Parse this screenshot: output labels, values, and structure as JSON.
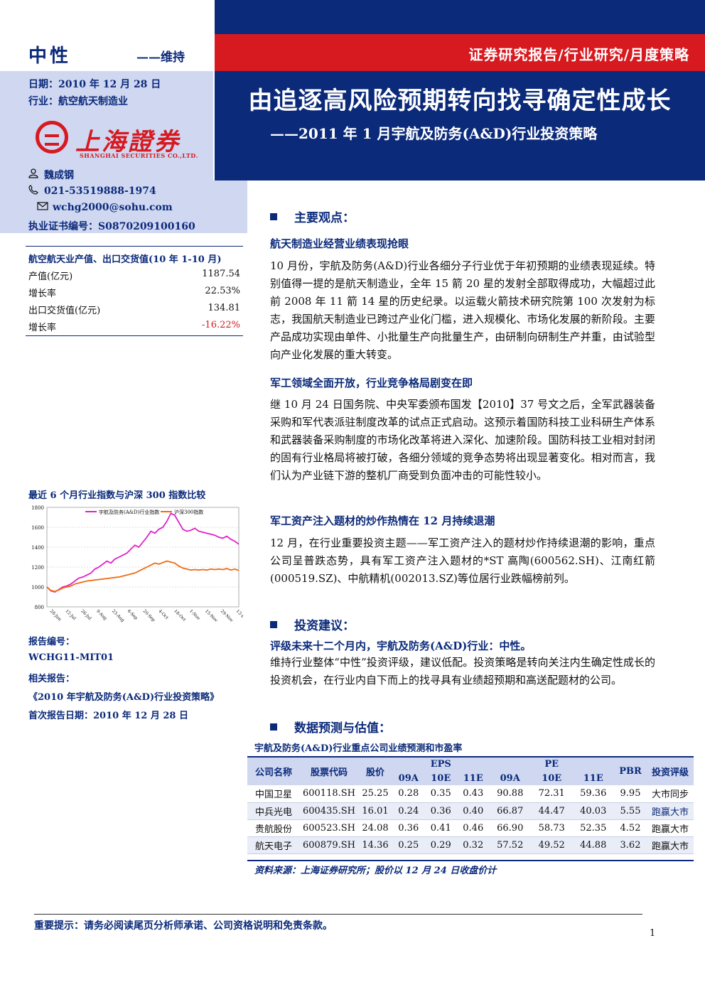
{
  "header": {
    "rating": "中性",
    "rating_action": "——维持",
    "date": "日期：2010 年 12 月 28 日",
    "industry": "行业：航空航天制造业",
    "report_type": "证券研究报告/行业研究/月度策略",
    "title": "由追逐高风险预期转向找寻确定性成长",
    "subtitle": "——2011 年 1 月宇航及防务(A&D)行业投资策略",
    "logo_cn": "上海證券",
    "logo_en": "SHANGHAI SECURITIES CO.,LTD."
  },
  "analyst": {
    "name": "魏成钢",
    "phone": "021-53519888-1974",
    "email": "wchg2000@sohu.com",
    "license": "执业证书编号：S0870209100160"
  },
  "left_table": {
    "title": "航空航天业产值、出口交货值(10 年 1-10 月)",
    "rows": [
      {
        "label": "产值(亿元)",
        "value": "1187.54"
      },
      {
        "label": "增长率",
        "value": "22.53%"
      },
      {
        "label": "出口交货值(亿元)",
        "value": "134.81"
      },
      {
        "label": "增长率",
        "value": "-16.22%"
      }
    ]
  },
  "chart_title": "最近 6 个月行业指数与沪深 300 指数比较",
  "chart_data": {
    "type": "line",
    "series": [
      {
        "name": "宇航及防务(A&D)行业指数",
        "color": "#e020c8",
        "values": [
          1000,
          960,
          950,
          975,
          1000,
          1010,
          1030,
          1060,
          1090,
          1100,
          1120,
          1140,
          1180,
          1200,
          1230,
          1260,
          1240,
          1280,
          1300,
          1320,
          1340,
          1380,
          1420,
          1400,
          1450,
          1500,
          1560,
          1540,
          1580,
          1600,
          1660,
          1740,
          1720,
          1650,
          1580,
          1560,
          1570,
          1590,
          1560,
          1550,
          1540,
          1530,
          1520,
          1500,
          1490,
          1510,
          1480,
          1460,
          1430
        ]
      },
      {
        "name": "沪深300指数",
        "color": "#f06a12",
        "values": [
          1000,
          965,
          955,
          970,
          990,
          1000,
          1010,
          1030,
          1040,
          1050,
          1060,
          1065,
          1070,
          1075,
          1080,
          1085,
          1090,
          1095,
          1100,
          1110,
          1120,
          1130,
          1140,
          1160,
          1180,
          1200,
          1220,
          1240,
          1230,
          1245,
          1260,
          1250,
          1240,
          1210,
          1190,
          1180,
          1170,
          1175,
          1170,
          1175,
          1170,
          1180,
          1175,
          1180,
          1175,
          1185,
          1170,
          1180,
          1165
        ]
      }
    ],
    "ylim": [
      800,
      1800
    ],
    "yticks": [
      "1800",
      "1600",
      "1400",
      "1200",
      "1000",
      "800"
    ],
    "xticks": [
      "28-Jun",
      "12-Jul",
      "26-Jul",
      "9-Aug",
      "23-Aug",
      "6-Sep",
      "20-Sep",
      "4-Oct",
      "18-Oct",
      "1-Nov",
      "15-Nov",
      "29-Nov",
      "13-Dec"
    ],
    "legend_position": "top"
  },
  "report_meta": {
    "number_label": "报告编号：",
    "number": "WCHG11-MIT01",
    "related_label": "相关报告：",
    "related": "《2010 年宇航及防务(A&D)行业投资策略》",
    "first_date": "首次报告日期：2010 年 12 月 28 日"
  },
  "sections": {
    "main_points": "主要观点：",
    "h1": "航天制造业经营业绩表现抢眼",
    "p1": "10 月份，宇航及防务(A&D)行业各细分子行业优于年初预期的业绩表现延续。特别值得一提的是航天制造业，全年 15 箭 20 星的发射全部取得成功，大幅超过此前 2008 年 11 箭 14 星的历史纪录。以运载火箭技术研究院第 100 次发射为标志，我国航天制造业已跨过产业化门槛，进入规模化、市场化发展的新阶段。主要产品成功实现由单件、小批量生产向批量生产，由研制向研制生产并重，由试验型向产业化发展的重大转变。",
    "h2": "军工领域全面开放，行业竞争格局剧变在即",
    "p2": "继 10 月 24 日国务院、中央军委颁布国发【2010】37 号文之后，全军武器装备采购和军代表派驻制度改革的试点正式启动。这预示着国防科技工业科研生产体系和武器装备采购制度的市场化改革将进入深化、加速阶段。国防科技工业相对封闭的固有行业格局将被打破，各细分领域的竞争态势将出现显著变化。相对而言，我们认为产业链下游的整机厂商受到负面冲击的可能性较小。",
    "h3": "军工资产注入题材的炒作热情在 12 月持续退潮",
    "p3": "12 月，在行业重要投资主题——军工资产注入的题材炒作持续退潮的影响，重点公司呈普跌态势，具有军工资产注入题材的*ST 高陶(600562.SH)、江南红箭(000519.SZ)、中航精机(002013.SZ)等位居行业跌幅榜前列。",
    "invest_head": "投资建议：",
    "h4": "评级未来十二个月内，宇航及防务(A&D)行业：中性。",
    "p4": "维持行业整体“中性”投资评级，建议低配。投资策略是转向关注内生确定性成长的投资机会，在行业内自下而上的找寻具有业绩超预期和高送配题材的公司。",
    "forecast_head": "数据预测与估值："
  },
  "valuation_table": {
    "title": "宇航及防务(A&D)行业重点公司业绩预测和市盈率",
    "headers": {
      "company": "公司名称",
      "code": "股票代码",
      "price": "股价",
      "eps": "EPS",
      "pe": "PE",
      "pbr": "PBR",
      "rating": "投资评级"
    },
    "years": [
      "09A",
      "10E",
      "11E",
      "09A",
      "10E",
      "11E"
    ],
    "rows": [
      {
        "name": "中国卫星",
        "code": "600118.SH",
        "price": "25.25",
        "eps09": "0.28",
        "eps10": "0.35",
        "eps11": "0.43",
        "pe09": "90.88",
        "pe10": "72.31",
        "pe11": "59.36",
        "pbr": "9.95",
        "rating": "大市同步"
      },
      {
        "name": "中兵光电",
        "code": "600435.SH",
        "price": "16.01",
        "eps09": "0.24",
        "eps10": "0.36",
        "eps11": "0.40",
        "pe09": "66.87",
        "pe10": "44.47",
        "pe11": "40.03",
        "pbr": "5.55",
        "rating": "跑赢大市"
      },
      {
        "name": "贵航股份",
        "code": "600523.SH",
        "price": "24.08",
        "eps09": "0.36",
        "eps10": "0.41",
        "eps11": "0.46",
        "pe09": "66.90",
        "pe10": "58.73",
        "pe11": "52.35",
        "pbr": "4.52",
        "rating": "跑赢大市"
      },
      {
        "name": "航天电子",
        "code": "600879.SH",
        "price": "14.36",
        "eps09": "0.25",
        "eps10": "0.29",
        "eps11": "0.32",
        "pe09": "57.52",
        "pe10": "49.52",
        "pe11": "44.88",
        "pbr": "3.62",
        "rating": "跑赢大市"
      }
    ],
    "source": "资料来源：上海证券研究所；股价以 12 月 24 日收盘价计"
  },
  "footer": {
    "notice": "重要提示：请务必阅读尾页分析师承诺、公司资格说明和免责条款。",
    "page": "1"
  }
}
